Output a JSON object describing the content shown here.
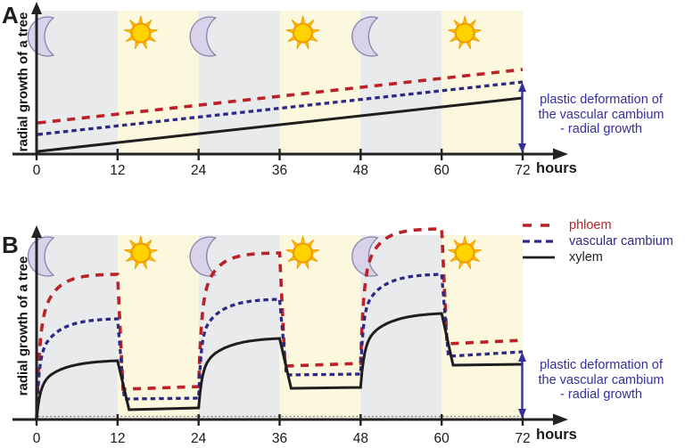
{
  "colors": {
    "phloem": "#bb2127",
    "vascular_cambium": "#2d2a87",
    "xylem": "#1e1e1e",
    "annotation": "#35309c",
    "axis": "#222222",
    "tick_label": "#1a1a1a",
    "night_band": "#e9eaec",
    "day_band": "#fbf8dd",
    "moon_fill": "#d8d3ea",
    "moon_stroke": "#8a82a8",
    "sun_core": "#ffd200",
    "sun_ray": "#fcc500",
    "sun_stroke": "#f09e00",
    "dotted_baseline": "#777777"
  },
  "panelA": {
    "label": "A",
    "y_label": "radial growth of a tree"
  },
  "panelB": {
    "label": "B",
    "y_label": "radial growth of a tree"
  },
  "x_axis": {
    "ticks": [
      0,
      12,
      24,
      36,
      48,
      60,
      72
    ],
    "unit_label": "hours"
  },
  "legend": {
    "items": [
      {
        "series": "phloem",
        "label": "phloem"
      },
      {
        "series": "vascular cambium",
        "label": "vascular cambium"
      },
      {
        "series": "xylem",
        "label": "xylem"
      }
    ]
  },
  "annotation_lines": [
    "plastic deformation of",
    "the vascular cambium",
    "- radial growth"
  ],
  "chart_data": [
    {
      "type": "line",
      "panel": "A",
      "xlabel": "hours",
      "ylabel": "radial growth of a tree",
      "x_range": [
        0,
        72
      ],
      "x_ticks": [
        0,
        12,
        24,
        36,
        48,
        60,
        72
      ],
      "y_units": "relative radial increment (arbitrary units, no numeric scale shown)",
      "day_night_bands": [
        [
          0,
          12,
          "night"
        ],
        [
          12,
          24,
          "day"
        ],
        [
          24,
          36,
          "night"
        ],
        [
          36,
          48,
          "day"
        ],
        [
          48,
          60,
          "night"
        ],
        [
          60,
          72,
          "day"
        ]
      ],
      "series": [
        {
          "name": "phloem",
          "color": "#bb2127",
          "style": "dashed-long",
          "points": [
            [
              0,
              35
            ],
            [
              72,
              95
            ]
          ]
        },
        {
          "name": "vascular cambium",
          "color": "#2d2a87",
          "style": "dashed-short",
          "points": [
            [
              0,
              22
            ],
            [
              72,
              81
            ]
          ]
        },
        {
          "name": "xylem",
          "color": "#1e1e1e",
          "style": "solid",
          "points": [
            [
              0,
              3
            ],
            [
              72,
              63
            ]
          ]
        }
      ],
      "annotation": {
        "text": "plastic deformation of the vascular cambium - radial growth",
        "arrow_hour": 72,
        "arrow_from_value": 81,
        "arrow_to_value": 0
      }
    },
    {
      "type": "line",
      "panel": "B",
      "xlabel": "hours",
      "ylabel": "radial growth of a tree",
      "x_range": [
        0,
        72
      ],
      "x_ticks": [
        0,
        12,
        24,
        36,
        48,
        60,
        72
      ],
      "y_units": "relative radial increment (arbitrary units, no numeric scale shown)",
      "day_night_bands": [
        [
          0,
          12,
          "night"
        ],
        [
          12,
          24,
          "day"
        ],
        [
          24,
          36,
          "night"
        ],
        [
          36,
          48,
          "day"
        ],
        [
          48,
          60,
          "night"
        ],
        [
          60,
          72,
          "day"
        ]
      ],
      "baseline_dotted_at_value": 3.5,
      "series": [
        {
          "name": "phloem",
          "color": "#bb2127",
          "style": "dashed-long",
          "start_value": 0,
          "drop_hours": 0.8,
          "cycles": [
            {
              "night_start": 0,
              "peak": 163,
              "trough": 34,
              "day_end": 37
            },
            {
              "night_start": 24,
              "peak": 187,
              "trough": 60,
              "day_end": 63
            },
            {
              "night_start": 48,
              "peak": 214,
              "trough": 85,
              "day_end": 89
            }
          ]
        },
        {
          "name": "vascular cambium",
          "color": "#2d2a87",
          "style": "dashed-short",
          "start_value": 0,
          "drop_hours": 1.0,
          "cycles": [
            {
              "night_start": 0,
              "peak": 113,
              "trough": 23,
              "day_end": 24
            },
            {
              "night_start": 24,
              "peak": 135,
              "trough": 50,
              "day_end": 51
            },
            {
              "night_start": 48,
              "peak": 163,
              "trough": 71,
              "day_end": 76
            }
          ]
        },
        {
          "name": "xylem",
          "color": "#1e1e1e",
          "style": "solid",
          "start_value": 0,
          "drop_hours": 1.7,
          "cycles": [
            {
              "night_start": 0,
              "peak": 66,
              "trough": 11,
              "day_end": 13
            },
            {
              "night_start": 24,
              "peak": 91,
              "trough": 35,
              "day_end": 36
            },
            {
              "night_start": 48,
              "peak": 119,
              "trough": 61,
              "day_end": 62
            }
          ]
        }
      ],
      "annotation": {
        "text": "plastic deformation of the vascular cambium - radial growth",
        "arrow_hour": 72,
        "arrow_from_value": 76,
        "arrow_to_value": 0
      }
    }
  ]
}
